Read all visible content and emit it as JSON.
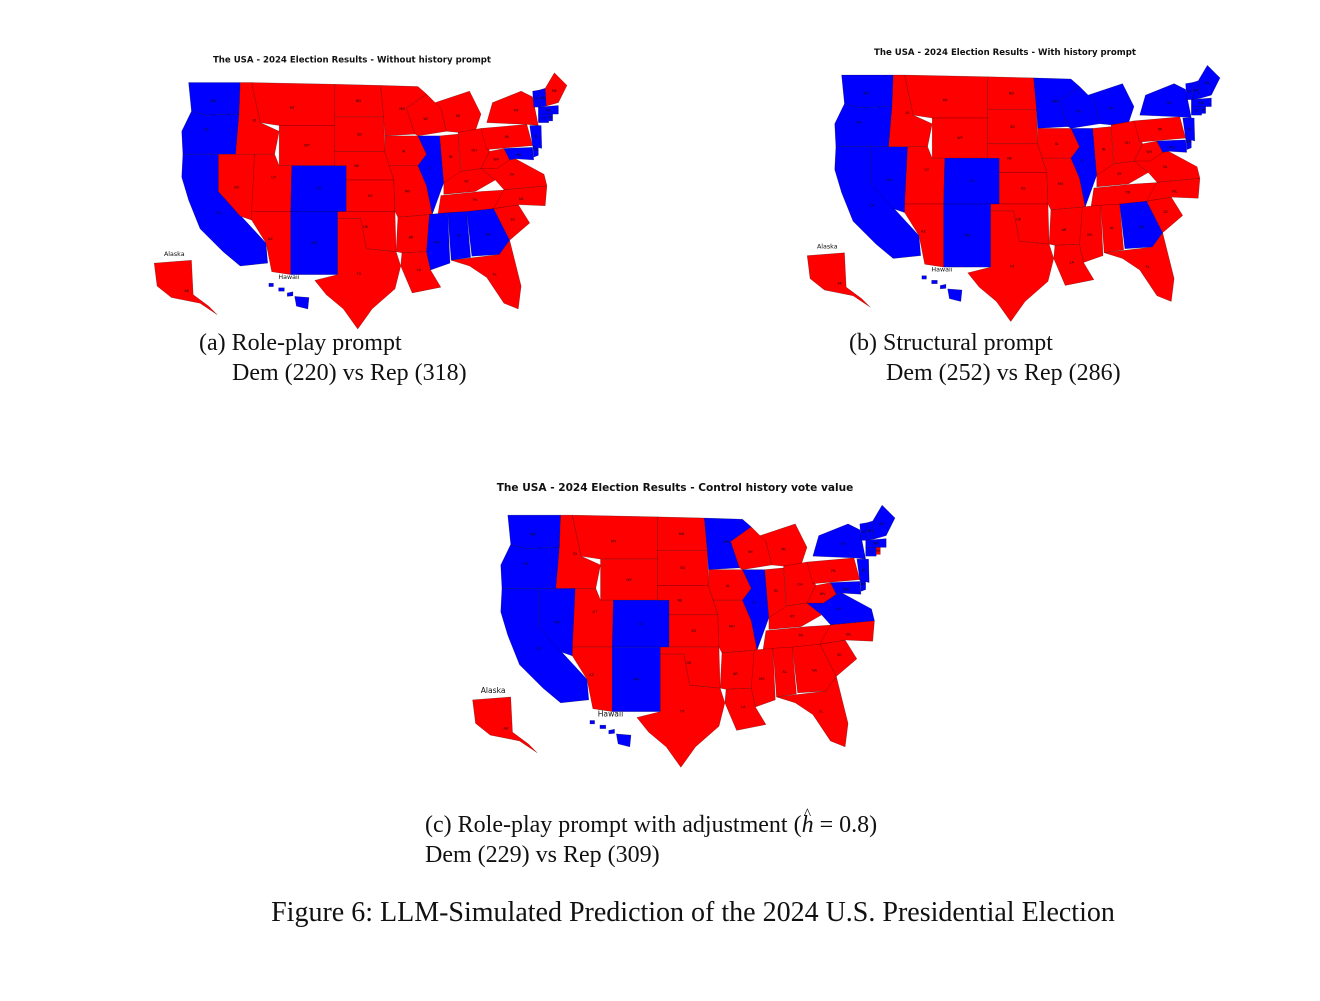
{
  "colors": {
    "dem": "#0000ff",
    "rep": "#ff0000",
    "border": "#000000",
    "background": "#ffffff"
  },
  "insets": {
    "alaska": "Alaska",
    "hawaii": "Hawaii"
  },
  "maps": [
    {
      "id": "a",
      "title": "The USA - 2024 Election Results - Without history prompt",
      "caption_line1": "(a) Role-play prompt",
      "caption_line2": "Dem (220) vs Rep (318)",
      "dem_votes": 220,
      "rep_votes": 318,
      "blue_states": [
        "WA",
        "OR",
        "CA",
        "CO",
        "NM",
        "IL",
        "VT",
        "NH",
        "MA",
        "RI",
        "CT",
        "NJ",
        "DE",
        "MD",
        "MS",
        "AL",
        "GA",
        "HI"
      ]
    },
    {
      "id": "b",
      "title": "The USA - 2024 Election Results - With history prompt",
      "caption_line1": "(b) Structural prompt",
      "caption_line2": "Dem (252) vs Rep (286)",
      "dem_votes": 252,
      "rep_votes": 286,
      "blue_states": [
        "WA",
        "OR",
        "CA",
        "NV",
        "CO",
        "NM",
        "MN",
        "WI",
        "MI",
        "IL",
        "ME",
        "VT",
        "NH",
        "MA",
        "RI",
        "CT",
        "NY",
        "NJ",
        "DE",
        "MD",
        "GA",
        "HI"
      ]
    },
    {
      "id": "c",
      "title": "The USA - 2024 Election Results - Control history vote value",
      "caption_line1": "(c) Role-play prompt with adjustment (",
      "caption_hat": "h",
      "caption_math": " = 0.8)",
      "caption_line2": "Dem (229) vs Rep (309)",
      "dem_votes": 229,
      "rep_votes": 309,
      "blue_states": [
        "WA",
        "OR",
        "CA",
        "NV",
        "CO",
        "NM",
        "MN",
        "IL",
        "ME",
        "VT",
        "NH",
        "MA",
        "CT",
        "NY",
        "NJ",
        "DE",
        "MD",
        "VA",
        "HI"
      ]
    }
  ],
  "figure_caption": "Figure 6: LLM-Simulated Prediction of the 2024 U.S. Presidential Election"
}
